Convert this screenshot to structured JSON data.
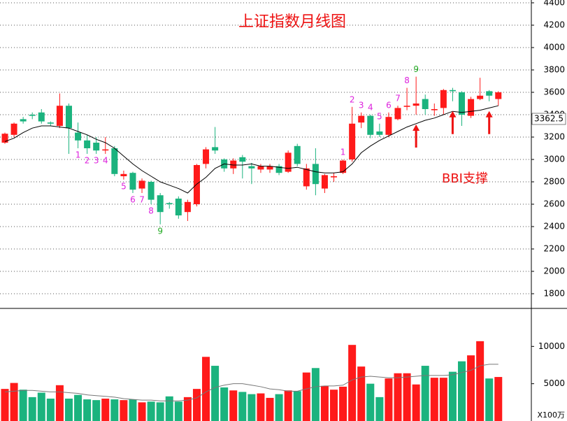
{
  "chart_data": [
    {
      "type": "candlestick",
      "title": "上证指数月线图",
      "annotation": "BBI支撑",
      "up_color": "#ff1a1a",
      "down_color": "#1bb37e",
      "line_color": "#000000",
      "ylim": [
        1675,
        4425
      ],
      "yticks": [
        1800,
        2000,
        2200,
        2400,
        2600,
        2800,
        3000,
        3200,
        3400,
        3600,
        3800,
        4000,
        4200,
        4400
      ],
      "grid": true,
      "last_label": 3362.5,
      "open": [
        3150,
        3220,
        3360,
        3400,
        3420,
        3330,
        3300,
        3480,
        3240,
        3170,
        3150,
        3080,
        3100,
        2850,
        2880,
        2740,
        2800,
        2680,
        2610,
        2650,
        2530,
        2600,
        2960,
        3110,
        3000,
        2920,
        3020,
        2940,
        2910,
        2910,
        2940,
        2890,
        3120,
        2760,
        2960,
        2740,
        2840,
        2880,
        3000,
        3330,
        3390,
        3250,
        3220,
        3360,
        3470,
        3480,
        3540,
        3440,
        3460,
        3620,
        3600,
        3390,
        3540,
        3610,
        3540
      ],
      "high": [
        3240,
        3330,
        3380,
        3420,
        3450,
        3340,
        3590,
        3500,
        3330,
        3220,
        3200,
        3200,
        3120,
        2900,
        2890,
        2830,
        2810,
        2700,
        2620,
        2670,
        2640,
        2960,
        3110,
        3290,
        3010,
        3010,
        3040,
        2970,
        2960,
        2960,
        2960,
        3080,
        3140,
        2960,
        3100,
        2870,
        2880,
        3000,
        3470,
        3420,
        3400,
        3320,
        3420,
        3480,
        3640,
        3740,
        3580,
        3500,
        3630,
        3640,
        3610,
        3560,
        3730,
        3620,
        3610
      ],
      "low": [
        3140,
        3200,
        3320,
        3360,
        3320,
        3300,
        3280,
        3050,
        3100,
        3050,
        3050,
        3050,
        2850,
        2820,
        2700,
        2700,
        2600,
        2420,
        2560,
        2470,
        2450,
        2580,
        2920,
        3050,
        2890,
        2870,
        2830,
        2780,
        2880,
        2880,
        2860,
        2880,
        2940,
        2730,
        2680,
        2700,
        2800,
        2870,
        2980,
        3280,
        3190,
        3200,
        3200,
        3350,
        3440,
        3400,
        3400,
        3390,
        3400,
        3520,
        3300,
        3370,
        3530,
        3520,
        3480
      ],
      "close": [
        3230,
        3320,
        3340,
        3390,
        3340,
        3320,
        3480,
        3280,
        3170,
        3100,
        3080,
        3090,
        2870,
        2870,
        2730,
        2810,
        2640,
        2530,
        2600,
        2500,
        2620,
        2950,
        3090,
        3080,
        2920,
        2990,
        2980,
        2920,
        2940,
        2940,
        2880,
        3060,
        2960,
        2920,
        2780,
        2860,
        2850,
        2990,
        3320,
        3390,
        3220,
        3220,
        3380,
        3460,
        3480,
        3500,
        3450,
        3450,
        3620,
        3610,
        3400,
        3540,
        3570,
        3570,
        3600
      ],
      "series": [
        {
          "name": "BBI",
          "values": [
            3160,
            3190,
            3240,
            3280,
            3300,
            3300,
            3290,
            3280,
            3250,
            3220,
            3180,
            3150,
            3100,
            3030,
            2960,
            2900,
            2850,
            2800,
            2770,
            2740,
            2700,
            2780,
            2840,
            2920,
            2960,
            2950,
            2950,
            2960,
            2940,
            2940,
            2930,
            2920,
            2930,
            2910,
            2890,
            2880,
            2880,
            2890,
            2960,
            3060,
            3120,
            3170,
            3210,
            3250,
            3290,
            3320,
            3350,
            3370,
            3400,
            3430,
            3420,
            3430,
            3440,
            3460,
            3480
          ]
        }
      ],
      "td_labels": [
        {
          "label": "1",
          "index": 8,
          "side": "below"
        },
        {
          "label": "2",
          "index": 9,
          "side": "below"
        },
        {
          "label": "3",
          "index": 10,
          "side": "below"
        },
        {
          "label": "4",
          "index": 11,
          "side": "below"
        },
        {
          "label": "5",
          "index": 13,
          "side": "below"
        },
        {
          "label": "6",
          "index": 14,
          "side": "below"
        },
        {
          "label": "7",
          "index": 15,
          "side": "below"
        },
        {
          "label": "8",
          "index": 16,
          "side": "below"
        },
        {
          "label": "9",
          "index": 17,
          "side": "below"
        },
        {
          "label": "1",
          "index": 37,
          "side": "above"
        },
        {
          "label": "2",
          "index": 38,
          "side": "above"
        },
        {
          "label": "3",
          "index": 39,
          "side": "above"
        },
        {
          "label": "4",
          "index": 40,
          "side": "above"
        },
        {
          "label": "5",
          "index": 41,
          "side": "above"
        },
        {
          "label": "6",
          "index": 42,
          "side": "above"
        },
        {
          "label": "7",
          "index": 43,
          "side": "above"
        },
        {
          "label": "8",
          "index": 44,
          "side": "above"
        },
        {
          "label": "9",
          "index": 45,
          "side": "above"
        }
      ],
      "arrow_indices": [
        45,
        49,
        53
      ]
    },
    {
      "type": "volume",
      "unit_label": "X100万",
      "ylim": [
        0,
        15000
      ],
      "yticks": [
        5000,
        10000
      ],
      "values": [
        4300,
        5100,
        4200,
        3200,
        3800,
        3000,
        4800,
        3000,
        3500,
        2900,
        2800,
        3000,
        2900,
        2800,
        2900,
        2500,
        2600,
        2500,
        3300,
        2600,
        3200,
        4300,
        8600,
        7400,
        4500,
        4100,
        3900,
        3600,
        3700,
        3100,
        3600,
        4100,
        4000,
        6500,
        7100,
        4700,
        4200,
        4600,
        10200,
        7300,
        5000,
        3200,
        5700,
        6400,
        6400,
        4900,
        7400,
        5800,
        5800,
        6600,
        8000,
        8800,
        10700,
        5700,
        5900
      ],
      "series": [
        {
          "name": "MA",
          "values": [
            3900,
            4000,
            4100,
            4100,
            4000,
            3900,
            3900,
            3800,
            3700,
            3500,
            3400,
            3300,
            3200,
            3000,
            2900,
            2800,
            2800,
            2700,
            2700,
            2700,
            2800,
            3100,
            3900,
            4500,
            4800,
            5000,
            5000,
            4800,
            4600,
            4300,
            4200,
            4000,
            4000,
            4300,
            4600,
            4700,
            4700,
            4800,
            5500,
            5900,
            6000,
            5900,
            5800,
            5800,
            5900,
            6000,
            6100,
            6100,
            6100,
            6200,
            6500,
            6800,
            7400,
            7600,
            7600
          ]
        }
      ]
    }
  ]
}
